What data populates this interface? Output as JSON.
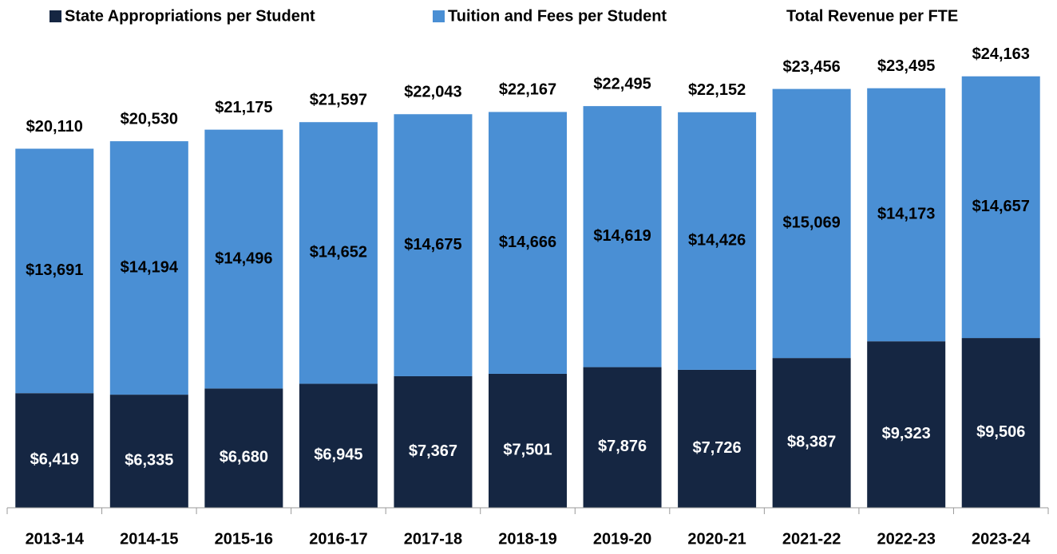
{
  "chart_data": {
    "type": "stacked_bar",
    "categories": [
      "2013-14",
      "2014-15",
      "2015-16",
      "2016-17",
      "2017-18",
      "2018-19",
      "2019-20",
      "2020-21",
      "2021-22",
      "2022-23",
      "2023-24"
    ],
    "series": [
      {
        "name": "State Appropriations per Student",
        "color": "#152642",
        "label_color": "#ffffff",
        "values": [
          6419,
          6335,
          6680,
          6945,
          7367,
          7501,
          7876,
          7726,
          8387,
          9323,
          9506
        ],
        "value_labels": [
          "$6,419",
          "$6,335",
          "$6,680",
          "$6,945",
          "$7,367",
          "$7,501",
          "$7,876",
          "$7,726",
          "$8,387",
          "$9,323",
          "$9,506"
        ]
      },
      {
        "name": "Tuition and Fees per Student",
        "color": "#4a8fd4",
        "label_color": "#000000",
        "values": [
          13691,
          14194,
          14496,
          14652,
          14675,
          14666,
          14619,
          14426,
          15069,
          14173,
          14657
        ],
        "value_labels": [
          "$13,691",
          "$14,194",
          "$14,496",
          "$14,652",
          "$14,675",
          "$14,666",
          "$14,619",
          "$14,426",
          "$15,069",
          "$14,173",
          "$14,657"
        ]
      }
    ],
    "totals": {
      "name": "Total Revenue per FTE",
      "values": [
        20110,
        20530,
        21175,
        21597,
        22043,
        22167,
        22495,
        22152,
        23456,
        23495,
        24163
      ],
      "value_labels": [
        "$20,110",
        "$20,530",
        "$21,175",
        "$21,597",
        "$22,043",
        "$22,167",
        "$22,495",
        "$22,152",
        "$23,456",
        "$23,495",
        "$24,163"
      ]
    },
    "ylim": [
      0,
      25000
    ]
  }
}
